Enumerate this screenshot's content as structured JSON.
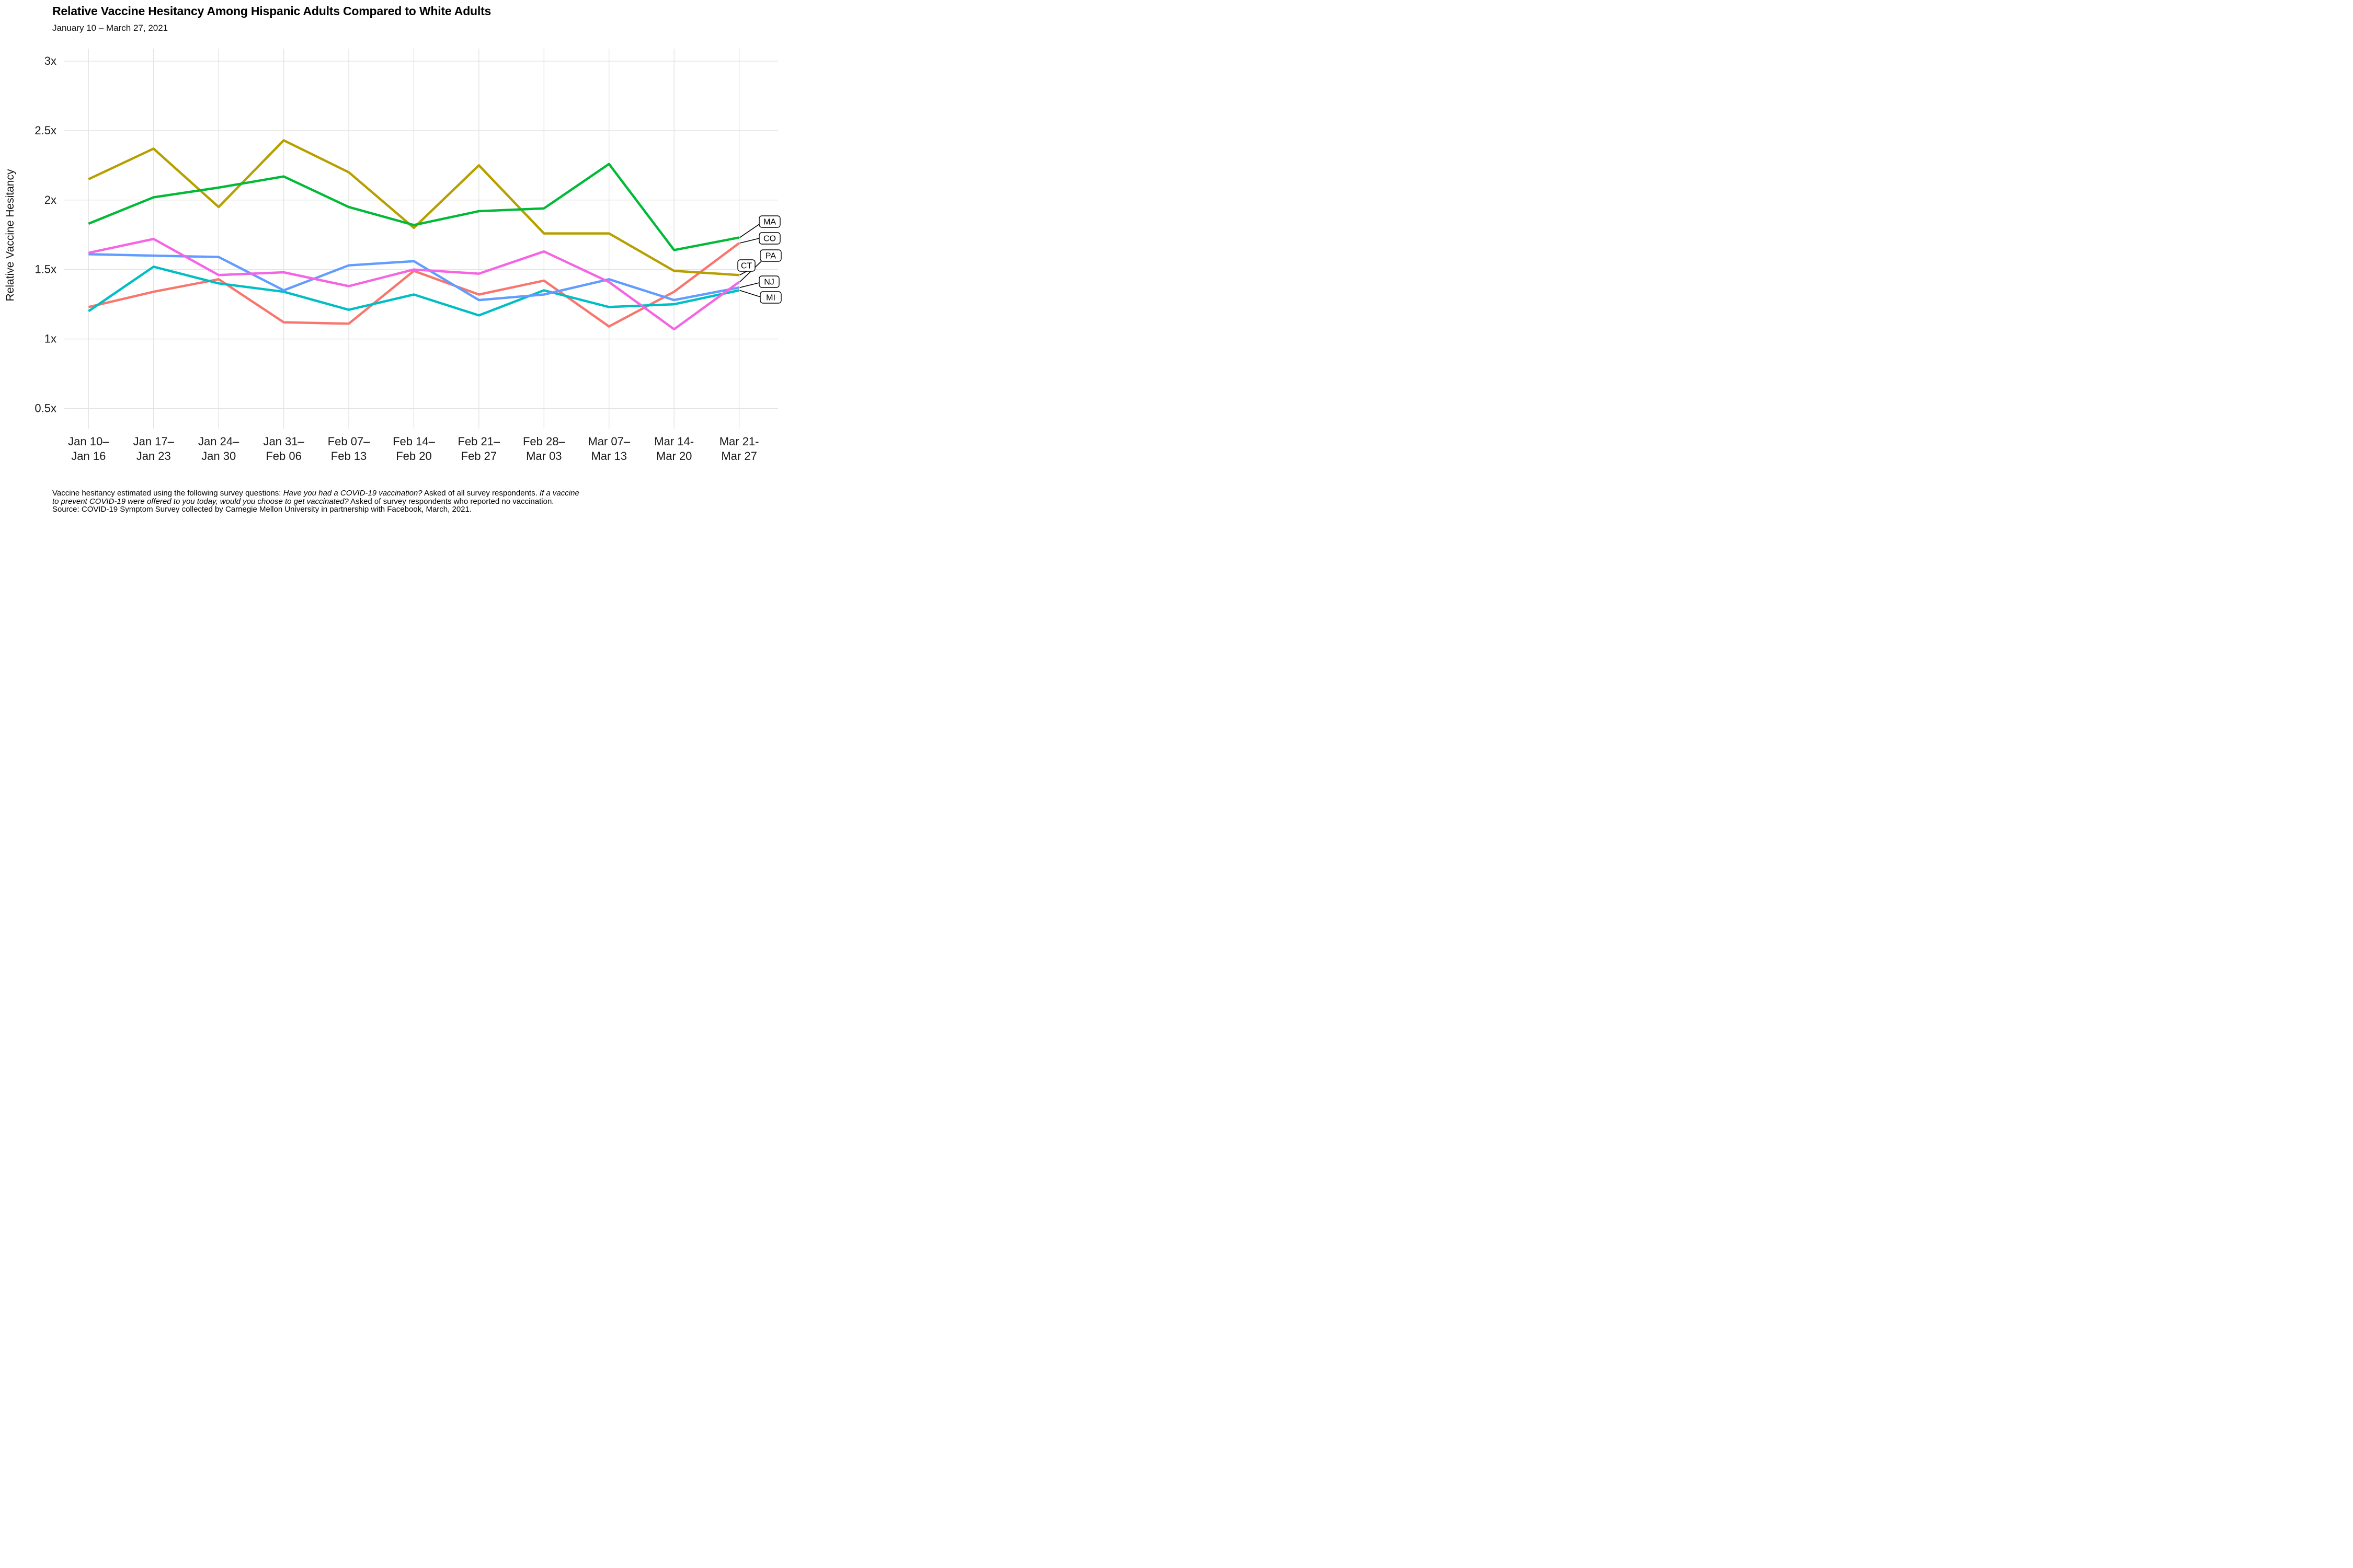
{
  "header": {
    "title": "Relative Vaccine Hesitancy Among Hispanic Adults Compared to White Adults",
    "subtitle": "January 10 – March 27, 2021"
  },
  "chart_data": {
    "type": "line",
    "title": "Relative Vaccine Hesitancy Among Hispanic Adults Compared to White Adults",
    "subtitle": "January 10 – March 27, 2021",
    "xlabel": "",
    "ylabel": "Relative Vaccine Hesitancy",
    "ylim": [
      0.4,
      3.1
    ],
    "grid": "both",
    "legend_position": "right-end-labels",
    "y_ticks": [
      {
        "label": "3x",
        "value": 3.0
      },
      {
        "label": "2.5x",
        "value": 2.5
      },
      {
        "label": "2x",
        "value": 2.0
      },
      {
        "label": "1.5x",
        "value": 1.5
      },
      {
        "label": "1x",
        "value": 1.0
      },
      {
        "label": "0.5x",
        "value": 0.5
      }
    ],
    "categories": [
      [
        "Jan 10–",
        "Jan 16"
      ],
      [
        "Jan 17–",
        "Jan 23"
      ],
      [
        "Jan 24–",
        "Jan 30"
      ],
      [
        "Jan 31–",
        "Feb 06"
      ],
      [
        "Feb 07–",
        "Feb 13"
      ],
      [
        "Feb 14–",
        "Feb 20"
      ],
      [
        "Feb 21–",
        "Feb 27"
      ],
      [
        "Feb 28–",
        "Mar 03"
      ],
      [
        "Mar 07–",
        "Mar 13"
      ],
      [
        "Mar 14-",
        "Mar 20"
      ],
      [
        "Mar 21-",
        "Mar 27"
      ]
    ],
    "series": [
      {
        "name": "CO",
        "color": "#F8766D",
        "values": [
          1.23,
          1.34,
          1.43,
          1.12,
          1.11,
          1.49,
          1.32,
          1.42,
          1.09,
          1.34,
          1.69
        ]
      },
      {
        "name": "CT",
        "color": "#B79F00",
        "values": [
          2.15,
          2.37,
          1.95,
          2.43,
          2.2,
          1.8,
          2.25,
          1.76,
          1.76,
          1.49,
          1.46
        ]
      },
      {
        "name": "MA",
        "color": "#00BA38",
        "values": [
          1.83,
          2.02,
          2.09,
          2.17,
          1.95,
          1.82,
          1.92,
          1.94,
          2.26,
          1.64,
          1.73
        ]
      },
      {
        "name": "MI",
        "color": "#00BFC4",
        "values": [
          1.2,
          1.52,
          1.4,
          1.34,
          1.21,
          1.32,
          1.17,
          1.35,
          1.23,
          1.25,
          1.35
        ]
      },
      {
        "name": "NJ",
        "color": "#619CFF",
        "values": [
          1.61,
          1.6,
          1.59,
          1.35,
          1.53,
          1.56,
          1.28,
          1.32,
          1.43,
          1.28,
          1.37
        ]
      },
      {
        "name": "PA",
        "color": "#F564E3",
        "values": [
          1.62,
          1.72,
          1.46,
          1.48,
          1.38,
          1.5,
          1.47,
          1.63,
          1.41,
          1.07,
          1.41
        ]
      }
    ],
    "end_labels": [
      "MA",
      "CO",
      "PA",
      "CT",
      "NJ",
      "MI"
    ]
  },
  "footnote": {
    "lines": [
      [
        {
          "text": "Vaccine hesitancy estimated using the following survey questions: ",
          "italic": false
        },
        {
          "text": "Have you had a COVID-19 vaccination?",
          "italic": true
        },
        {
          "text": " Asked of all survey respondents. ",
          "italic": false
        },
        {
          "text": "If a vaccine",
          "italic": true
        }
      ],
      [
        {
          "text": "to prevent COVID-19 were offered to you today, would you choose to get vaccinated?",
          "italic": true
        },
        {
          "text": " Asked of survey respondents who reported no vaccination.",
          "italic": false
        }
      ],
      [
        {
          "text": "Source: COVID-19 Symptom Survey collected by Carnegie Mellon University in partnership with Facebook, March, 2021.",
          "italic": false
        }
      ]
    ]
  }
}
